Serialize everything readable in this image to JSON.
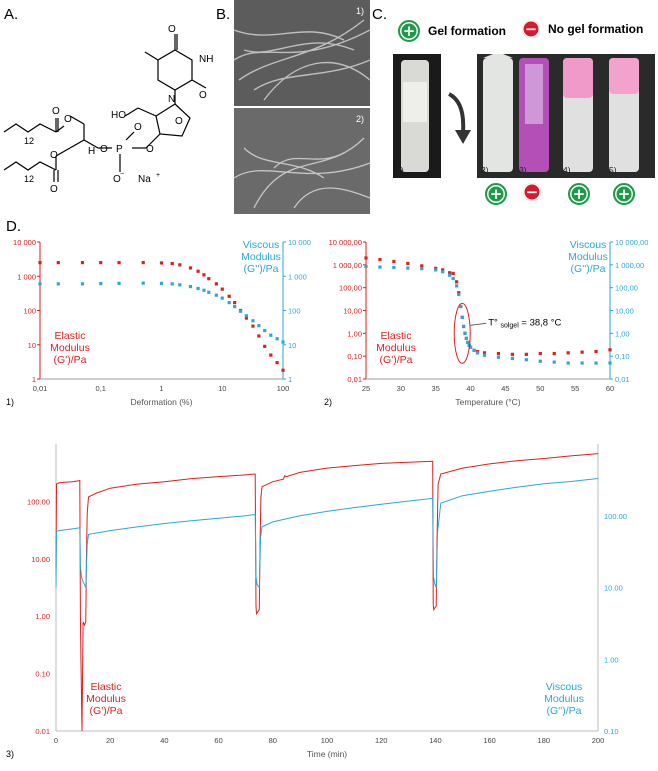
{
  "panel_letters": {
    "a": "A.",
    "b": "B.",
    "c": "C.",
    "d": "D."
  },
  "chemistry": {
    "chain_count_1": "12",
    "chain_count_2": "12",
    "ho_label": "HO",
    "nh_label": "NH",
    "phosphate_p": "P",
    "counter_ion": "Na",
    "stereo_h": "H"
  },
  "sem": {
    "img1_label": "1)",
    "img2_label": "2)"
  },
  "gel_panel": {
    "gel_formation": "Gel formation",
    "no_gel_formation": "No gel formation",
    "vial_labels": [
      "1)",
      "2)",
      "3)",
      "4)",
      "5)"
    ],
    "vial_status": [
      "",
      "plus",
      "minus",
      "plus",
      "plus"
    ]
  },
  "colors": {
    "elastic": "#e01e1e",
    "viscous": "#2aa8d6",
    "sem_gray": "#5e5e5e",
    "positive": "#1e9b48",
    "negative": "#d6192b"
  },
  "chart_data": [
    {
      "type": "scatter",
      "panel_label": "1)",
      "xlabel": "Deformation (%)",
      "x_scale": "log",
      "xlim": [
        0.01,
        100
      ],
      "x_ticks": [
        "0,01",
        "0,1",
        "1",
        "10",
        "100"
      ],
      "y_scale": "log",
      "ylim": [
        1,
        10000
      ],
      "y_left_ticks": [
        "1",
        "10",
        "100",
        "1 000",
        "10 000"
      ],
      "y_right_ticks": [
        "1",
        "10",
        "100",
        "1 000",
        "10 000"
      ],
      "left_label": [
        "Elastic",
        "Modulus",
        "(G')/Pa"
      ],
      "right_label": [
        "Viscous",
        "Modulus",
        "(G'')/Pa"
      ],
      "series": [
        {
          "name": "Elastic Modulus (G')/Pa",
          "color": "#e01e1e",
          "x": [
            0.01,
            0.02,
            0.05,
            0.1,
            0.2,
            0.5,
            1,
            1.5,
            2,
            3,
            4,
            5,
            6,
            8,
            10,
            13,
            16,
            20,
            25,
            32,
            40,
            50,
            63,
            80,
            100
          ],
          "y": [
            2500,
            2500,
            2500,
            2500,
            2500,
            2500,
            2450,
            2350,
            2150,
            1750,
            1400,
            1100,
            850,
            600,
            420,
            260,
            170,
            100,
            60,
            35,
            18,
            9,
            5,
            3,
            1.8
          ]
        },
        {
          "name": "Viscous Modulus (G'')/Pa",
          "color": "#2aa8d6",
          "x": [
            0.01,
            0.02,
            0.05,
            0.1,
            0.2,
            0.5,
            1,
            1.5,
            2,
            3,
            4,
            5,
            6,
            8,
            10,
            13,
            16,
            20,
            25,
            32,
            40,
            50,
            63,
            80,
            100
          ],
          "y": [
            600,
            600,
            600,
            610,
            620,
            630,
            620,
            600,
            560,
            500,
            440,
            390,
            340,
            280,
            230,
            170,
            130,
            95,
            70,
            50,
            36,
            26,
            19,
            15,
            12
          ]
        }
      ]
    },
    {
      "type": "scatter",
      "panel_label": "2)",
      "xlabel": "Temperature (°C)",
      "xlim": [
        25,
        60
      ],
      "x_ticks": [
        "25",
        "30",
        "35",
        "40",
        "45",
        "50",
        "55",
        "60"
      ],
      "y_scale": "log",
      "ylim": [
        0.01,
        10000
      ],
      "y_left_ticks": [
        "0,01",
        "0,10",
        "1,00",
        "10,00",
        "100,00",
        "1 000,00",
        "10 000,00"
      ],
      "y_right_ticks": [
        "0,01",
        "0,10",
        "1,00",
        "10,00",
        "100,00",
        "1 000,00",
        "10 000,00"
      ],
      "left_label": [
        "Elastic",
        "Modulus",
        "(G')/Pa"
      ],
      "right_label": [
        "Viscous",
        "Modulus",
        "(G'')/Pa"
      ],
      "annotation": {
        "prefix": "T°",
        "subscript": "solgel",
        "suffix": "= 38,8 °C",
        "x": 38.8
      },
      "series": [
        {
          "name": "Elastic Modulus (G')/Pa",
          "color": "#e01e1e",
          "x": [
            25,
            27,
            29,
            31,
            33,
            35,
            36,
            37,
            37.5,
            38,
            38.3,
            38.6,
            38.8,
            39,
            39.2,
            39.4,
            39.6,
            39.8,
            40,
            40.5,
            41,
            42,
            44,
            46,
            48,
            50,
            52,
            54,
            56,
            58,
            60
          ],
          "y": [
            2000,
            1700,
            1400,
            1150,
            900,
            700,
            600,
            450,
            420,
            180,
            60,
            15,
            5,
            2,
            1,
            0.6,
            0.4,
            0.3,
            0.25,
            0.18,
            0.16,
            0.14,
            0.13,
            0.12,
            0.12,
            0.13,
            0.13,
            0.14,
            0.15,
            0.16,
            0.19
          ]
        },
        {
          "name": "Viscous Modulus (G'')/Pa",
          "color": "#2aa8d6",
          "x": [
            25,
            27,
            29,
            31,
            33,
            35,
            36,
            37,
            37.5,
            38,
            38.3,
            38.6,
            38.8,
            39,
            39.2,
            39.4,
            39.6,
            39.8,
            40,
            40.5,
            41,
            42,
            44,
            46,
            48,
            50,
            52,
            54,
            56,
            58,
            60
          ],
          "y": [
            850,
            800,
            760,
            720,
            680,
            600,
            500,
            350,
            250,
            120,
            50,
            15,
            5,
            2,
            1,
            0.6,
            0.4,
            0.3,
            0.25,
            0.18,
            0.14,
            0.11,
            0.09,
            0.08,
            0.07,
            0.06,
            0.055,
            0.05,
            0.05,
            0.05,
            0.05
          ]
        }
      ]
    },
    {
      "type": "line",
      "panel_label": "3)",
      "xlabel": "Time (min)",
      "xlim": [
        0,
        200
      ],
      "x_ticks": [
        "0",
        "20",
        "40",
        "60",
        "80",
        "100",
        "120",
        "140",
        "160",
        "180",
        "200"
      ],
      "y_scale": "log",
      "y_left_lim": [
        0.01,
        1000
      ],
      "y_left_ticks": [
        "0.01",
        "0.10",
        "1.00",
        "10.00",
        "100.00"
      ],
      "y_right_lim": [
        0.1,
        1000
      ],
      "y_right_ticks": [
        "0.10",
        "1.00",
        "10.00",
        "100.00"
      ],
      "left_label": [
        "Elastic",
        "Modulus",
        "(G')/Pa"
      ],
      "right_label": [
        "Viscous",
        "Modulus",
        "(G'')/Pa"
      ],
      "series": [
        {
          "name": "Elastic Modulus (G')/Pa",
          "color": "#e01e1e",
          "axis": "left",
          "x": [
            0,
            0.2,
            1,
            3,
            6,
            8.8,
            9,
            9.2,
            9.6,
            10,
            10.5,
            11,
            11.2,
            11.5,
            12,
            15,
            20,
            30,
            40,
            50,
            60,
            70,
            73.5,
            73.8,
            74,
            74.5,
            75,
            75.3,
            75.6,
            76,
            80,
            84,
            84.3,
            85,
            90,
            100,
            110,
            120,
            130,
            139,
            139.2,
            139.4,
            139.8,
            140.3,
            140.6,
            141,
            142,
            150,
            160,
            170,
            180,
            190,
            200
          ],
          "y": [
            5,
            200,
            210,
            215,
            220,
            230,
            1,
            0.2,
            0.01,
            0.8,
            0.7,
            0.8,
            10,
            60,
            120,
            140,
            170,
            200,
            220,
            250,
            270,
            290,
            300,
            1.5,
            1.1,
            1.2,
            1.3,
            20,
            120,
            180,
            220,
            245,
            280,
            270,
            320,
            380,
            420,
            460,
            480,
            500,
            1.6,
            1.3,
            1.4,
            1.5,
            20,
            200,
            300,
            380,
            450,
            510,
            560,
            620,
            680
          ]
        },
        {
          "name": "Viscous Modulus (G'')/Pa",
          "color": "#2aa8d6",
          "axis": "right",
          "x": [
            0,
            0.2,
            1,
            5,
            8.8,
            9,
            9.4,
            10,
            10.5,
            11,
            11.5,
            12,
            20,
            30,
            40,
            50,
            60,
            70,
            73.5,
            73.8,
            74.2,
            75,
            75.5,
            76,
            80,
            90,
            100,
            110,
            120,
            130,
            139,
            139.3,
            139.8,
            140.3,
            140.8,
            142,
            150,
            160,
            170,
            180,
            190,
            200
          ],
          "y": [
            10,
            60,
            62,
            65,
            68,
            20,
            14,
            12,
            11,
            10,
            40,
            55,
            62,
            70,
            78,
            85,
            92,
            100,
            104,
            14,
            11,
            10,
            50,
            70,
            82,
            100,
            115,
            130,
            145,
            160,
            175,
            14,
            11,
            10,
            60,
            150,
            190,
            220,
            250,
            280,
            300,
            330
          ]
        }
      ]
    }
  ]
}
